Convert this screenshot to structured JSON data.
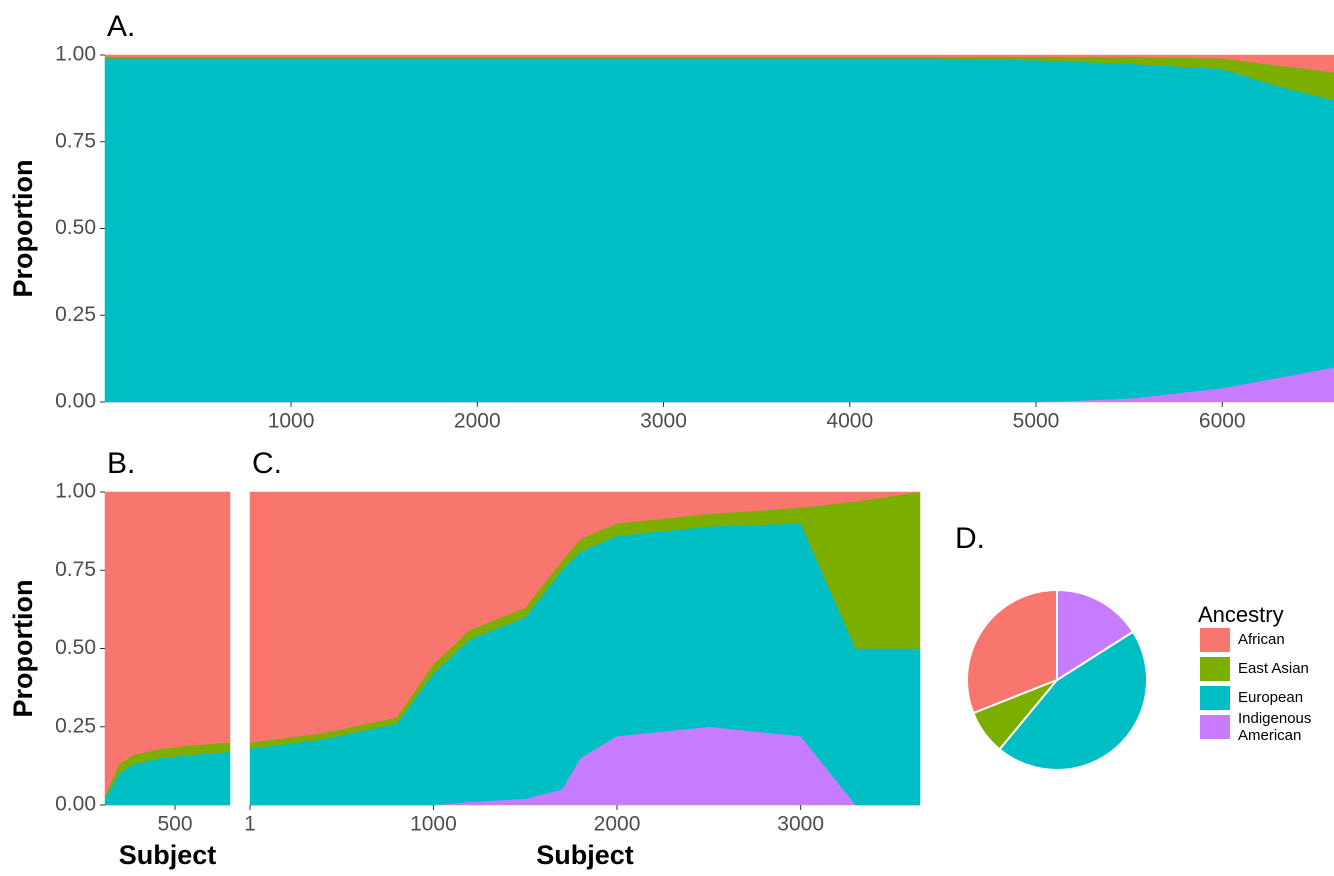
{
  "chart_data": [
    {
      "type": "area",
      "title": "A.",
      "ylabel": "Proportion",
      "x": [
        1,
        1000,
        2000,
        3000,
        4000,
        4500,
        5000,
        5500,
        6000,
        6300,
        6600
      ],
      "series": [
        {
          "name": "Indigenous American",
          "color": "#C77CFF",
          "values": [
            0,
            0,
            0,
            0,
            0,
            0,
            0,
            0.01,
            0.04,
            0.07,
            0.1
          ]
        },
        {
          "name": "European",
          "color": "#00BFC4",
          "values": [
            0.99,
            0.99,
            0.99,
            0.99,
            0.99,
            0.99,
            0.985,
            0.965,
            0.92,
            0.84,
            0.77
          ]
        },
        {
          "name": "East Asian",
          "color": "#7CAE00",
          "values": [
            0.005,
            0.005,
            0.005,
            0.005,
            0.005,
            0.005,
            0.01,
            0.02,
            0.03,
            0.06,
            0.08
          ]
        },
        {
          "name": "African",
          "color": "#F8766D",
          "values": [
            0.005,
            0.005,
            0.005,
            0.005,
            0.005,
            0.005,
            0.005,
            0.005,
            0.01,
            0.03,
            0.05
          ]
        }
      ],
      "xlim": [
        1,
        6600
      ],
      "xticks": [
        1000,
        2000,
        3000,
        4000,
        5000,
        6000
      ],
      "ylim": [
        0,
        1
      ],
      "yticks": [
        {
          "value": 0,
          "label": "0.00"
        },
        {
          "value": 0.25,
          "label": "0.25"
        },
        {
          "value": 0.5,
          "label": "0.50"
        },
        {
          "value": 0.75,
          "label": "0.75"
        },
        {
          "value": 1,
          "label": "1.00"
        }
      ]
    },
    {
      "type": "area",
      "title": "B.",
      "ylabel": "Proportion",
      "xlabel": "Subject",
      "x": [
        1,
        100,
        200,
        400,
        600,
        892
      ],
      "series": [
        {
          "name": "Indigenous American",
          "color": "#C77CFF",
          "values": [
            0,
            0,
            0,
            0,
            0,
            0
          ]
        },
        {
          "name": "European",
          "color": "#00BFC4",
          "values": [
            0.02,
            0.1,
            0.13,
            0.15,
            0.16,
            0.17
          ]
        },
        {
          "name": "East Asian",
          "color": "#7CAE00",
          "values": [
            0.01,
            0.03,
            0.03,
            0.03,
            0.03,
            0.03
          ]
        },
        {
          "name": "African",
          "color": "#F8766D",
          "values": [
            0.97,
            0.87,
            0.84,
            0.82,
            0.81,
            0.8
          ]
        }
      ],
      "xlim": [
        1,
        892
      ],
      "xticks": [
        500
      ],
      "ylim": [
        0,
        1
      ],
      "yticks": [
        {
          "value": 0,
          "label": "0.00"
        },
        {
          "value": 0.25,
          "label": "0.25"
        },
        {
          "value": 0.5,
          "label": "0.50"
        },
        {
          "value": 0.75,
          "label": "0.75"
        },
        {
          "value": 1,
          "label": "1.00"
        }
      ]
    },
    {
      "type": "area",
      "title": "C.",
      "xlabel": "Subject",
      "x": [
        1,
        400,
        800,
        1000,
        1200,
        1500,
        1700,
        1800,
        2000,
        2500,
        3000,
        3300,
        3650
      ],
      "series": [
        {
          "name": "Indigenous American",
          "color": "#C77CFF",
          "values": [
            0,
            0,
            0,
            0,
            0.01,
            0.02,
            0.05,
            0.15,
            0.22,
            0.25,
            0.22,
            0,
            0
          ]
        },
        {
          "name": "European",
          "color": "#00BFC4",
          "values": [
            0.18,
            0.21,
            0.26,
            0.42,
            0.52,
            0.58,
            0.7,
            0.66,
            0.64,
            0.64,
            0.68,
            0.5,
            0.5
          ]
        },
        {
          "name": "East Asian",
          "color": "#7CAE00",
          "values": [
            0.02,
            0.02,
            0.02,
            0.03,
            0.03,
            0.03,
            0.03,
            0.04,
            0.04,
            0.04,
            0.05,
            0.47,
            0.5
          ]
        },
        {
          "name": "African",
          "color": "#F8766D",
          "values": [
            0.8,
            0.77,
            0.72,
            0.55,
            0.44,
            0.37,
            0.22,
            0.15,
            0.1,
            0.07,
            0.05,
            0.03,
            0
          ]
        }
      ],
      "xlim": [
        1,
        3650
      ],
      "xticks": [
        1,
        1000,
        2000,
        3000
      ],
      "ylim": [
        0,
        1
      ]
    },
    {
      "type": "pie",
      "title": "D.",
      "legend_title": "Ancestry",
      "legend": "right",
      "categories": [
        "African",
        "East Asian",
        "European",
        "Indigenous American"
      ],
      "values": [
        31,
        8,
        45,
        16
      ],
      "colors": [
        "#F8766D",
        "#7CAE00",
        "#00BFC4",
        "#C77CFF"
      ]
    }
  ]
}
